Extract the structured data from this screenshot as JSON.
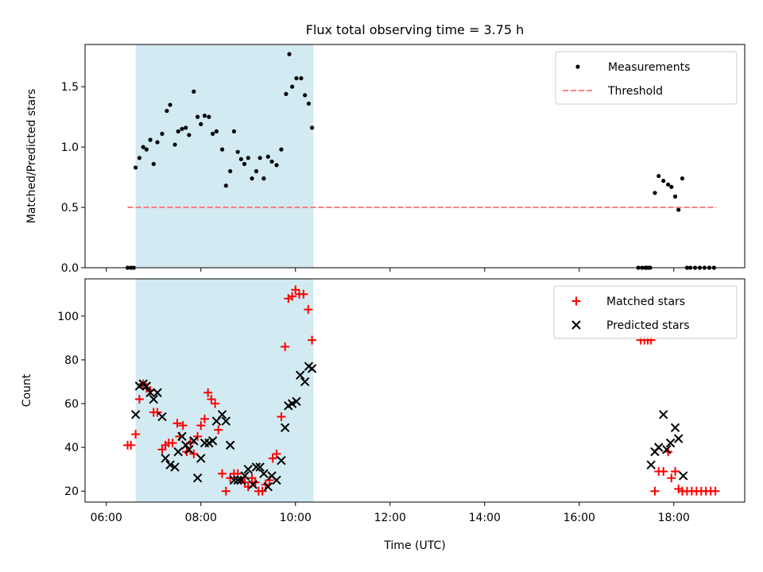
{
  "chart_data": {
    "title": "Flux total observing time = 3.75 h",
    "shared_x": {
      "label": "Time (UTC)",
      "ticks": [
        "06:00",
        "08:00",
        "10:00",
        "12:00",
        "14:00",
        "16:00",
        "18:00"
      ],
      "tick_hours": [
        6,
        8,
        10,
        12,
        14,
        16,
        18
      ],
      "range_hours": [
        5.55,
        19.5
      ]
    },
    "observing_window_hours": [
      6.62,
      10.38
    ],
    "observing_window_color": "#add8e6",
    "panels": [
      {
        "type": "scatter",
        "ylabel": "Matched/Predicted stars",
        "ylim": [
          0,
          1.85
        ],
        "yticks": [
          0.0,
          0.5,
          1.0,
          1.5
        ],
        "ytick_labels": [
          "0.0",
          "0.5",
          "1.0",
          "1.5"
        ],
        "legend_position": "top-right",
        "series": [
          {
            "name": "Measurements",
            "marker": "dot",
            "color": "#000000",
            "x": [
              6.45,
              6.52,
              6.58,
              6.62,
              6.7,
              6.78,
              6.85,
              6.93,
              7.0,
              7.08,
              7.18,
              7.28,
              7.35,
              7.45,
              7.52,
              7.6,
              7.68,
              7.75,
              7.85,
              7.93,
              8.0,
              8.08,
              8.17,
              8.25,
              8.33,
              8.45,
              8.53,
              8.62,
              8.7,
              8.78,
              8.85,
              8.92,
              9.0,
              9.08,
              9.17,
              9.25,
              9.33,
              9.42,
              9.5,
              9.6,
              9.7,
              9.8,
              9.87,
              9.93,
              10.02,
              10.12,
              10.2,
              10.28,
              10.35,
              17.25,
              17.33,
              17.4,
              17.45,
              17.5,
              17.6,
              17.68,
              17.78,
              17.88,
              17.95,
              18.03,
              18.1,
              18.18,
              18.28,
              18.35,
              18.45,
              18.55,
              18.65,
              18.75,
              18.85
            ],
            "y": [
              0,
              0,
              0,
              0.83,
              0.91,
              1.0,
              0.98,
              1.06,
              0.86,
              1.04,
              1.11,
              1.3,
              1.35,
              1.02,
              1.13,
              1.15,
              1.16,
              1.1,
              1.46,
              1.25,
              1.19,
              1.26,
              1.25,
              1.11,
              1.13,
              0.98,
              0.68,
              0.8,
              1.13,
              0.96,
              0.9,
              0.86,
              0.91,
              0.74,
              0.8,
              0.91,
              0.74,
              0.92,
              0.88,
              0.85,
              0.98,
              1.44,
              1.77,
              1.5,
              1.57,
              1.57,
              1.43,
              1.36,
              1.16,
              0,
              0,
              0,
              0,
              0,
              0.62,
              0.76,
              0.72,
              0.69,
              0.67,
              0.59,
              0.48,
              0.74,
              0,
              0,
              0,
              0,
              0,
              0,
              0
            ]
          },
          {
            "name": "Threshold",
            "marker": "dashed-line",
            "color": "#ff7f7f",
            "x": [
              6.45,
              18.9
            ],
            "y": [
              0.5,
              0.5
            ]
          }
        ]
      },
      {
        "type": "scatter",
        "ylabel": "Count",
        "ylim": [
          15,
          117
        ],
        "yticks": [
          20,
          40,
          60,
          80,
          100
        ],
        "ytick_labels": [
          "20",
          "40",
          "60",
          "80",
          "100"
        ],
        "legend_position": "top-right",
        "series": [
          {
            "name": "Matched stars",
            "marker": "plus",
            "color": "#ff0000",
            "x": [
              6.45,
              6.52,
              6.62,
              6.7,
              6.78,
              6.85,
              6.93,
              7.0,
              7.08,
              7.18,
              7.25,
              7.32,
              7.4,
              7.5,
              7.55,
              7.62,
              7.7,
              7.78,
              7.85,
              7.93,
              8.0,
              8.08,
              8.15,
              8.22,
              8.3,
              8.37,
              8.45,
              8.53,
              8.62,
              8.7,
              8.78,
              8.85,
              8.93,
              9.0,
              9.08,
              9.15,
              9.22,
              9.3,
              9.37,
              9.45,
              9.52,
              9.6,
              9.7,
              9.78,
              9.85,
              9.93,
              10.0,
              10.08,
              10.17,
              10.27,
              10.35,
              17.3,
              17.38,
              17.45,
              17.52,
              17.6,
              17.68,
              17.78,
              17.88,
              17.95,
              18.03,
              18.1,
              18.18,
              18.28,
              18.38,
              18.48,
              18.58,
              18.68,
              18.78,
              18.88
            ],
            "y": [
              41,
              41,
              46,
              62,
              69,
              67,
              66,
              56,
              56,
              39,
              41,
              42,
              42,
              51,
              45,
              50,
              38,
              42,
              37,
              45,
              50,
              53,
              65,
              62,
              60,
              48,
              28,
              20,
              26,
              28,
              28,
              25,
              24,
              22,
              26,
              24,
              20,
              20,
              23,
              25,
              35,
              37,
              54,
              86,
              108,
              109,
              112,
              110,
              110,
              103,
              89,
              89,
              89,
              89,
              89,
              20,
              29,
              29,
              38,
              26,
              29,
              21,
              20,
              20,
              20,
              20,
              20,
              20,
              20,
              20
            ]
          },
          {
            "name": "Predicted stars",
            "marker": "x",
            "color": "#000000",
            "x": [
              6.62,
              6.7,
              6.78,
              6.85,
              6.93,
              7.0,
              7.08,
              7.18,
              7.25,
              7.35,
              7.45,
              7.52,
              7.6,
              7.68,
              7.75,
              7.85,
              7.93,
              8.0,
              8.08,
              8.17,
              8.25,
              8.33,
              8.45,
              8.53,
              8.62,
              8.7,
              8.78,
              8.85,
              8.93,
              9.0,
              9.1,
              9.17,
              9.25,
              9.33,
              9.42,
              9.5,
              9.6,
              9.7,
              9.78,
              9.85,
              9.93,
              10.02,
              10.1,
              10.2,
              10.28,
              10.35,
              17.52,
              17.6,
              17.68,
              17.78,
              17.85,
              17.93,
              18.03,
              18.1,
              18.2
            ],
            "y": [
              55,
              68,
              69,
              68,
              65,
              62,
              65,
              54,
              35,
              32,
              31,
              38,
              45,
              41,
              39,
              43,
              26,
              35,
              42,
              42,
              43,
              52,
              55,
              52,
              41,
              25,
              25,
              25,
              27,
              30,
              23,
              31,
              31,
              28,
              22,
              27,
              25,
              34,
              49,
              59,
              60,
              61,
              73,
              70,
              77,
              76,
              32,
              38,
              40,
              55,
              39,
              42,
              49,
              44,
              27
            ]
          }
        ]
      }
    ]
  }
}
